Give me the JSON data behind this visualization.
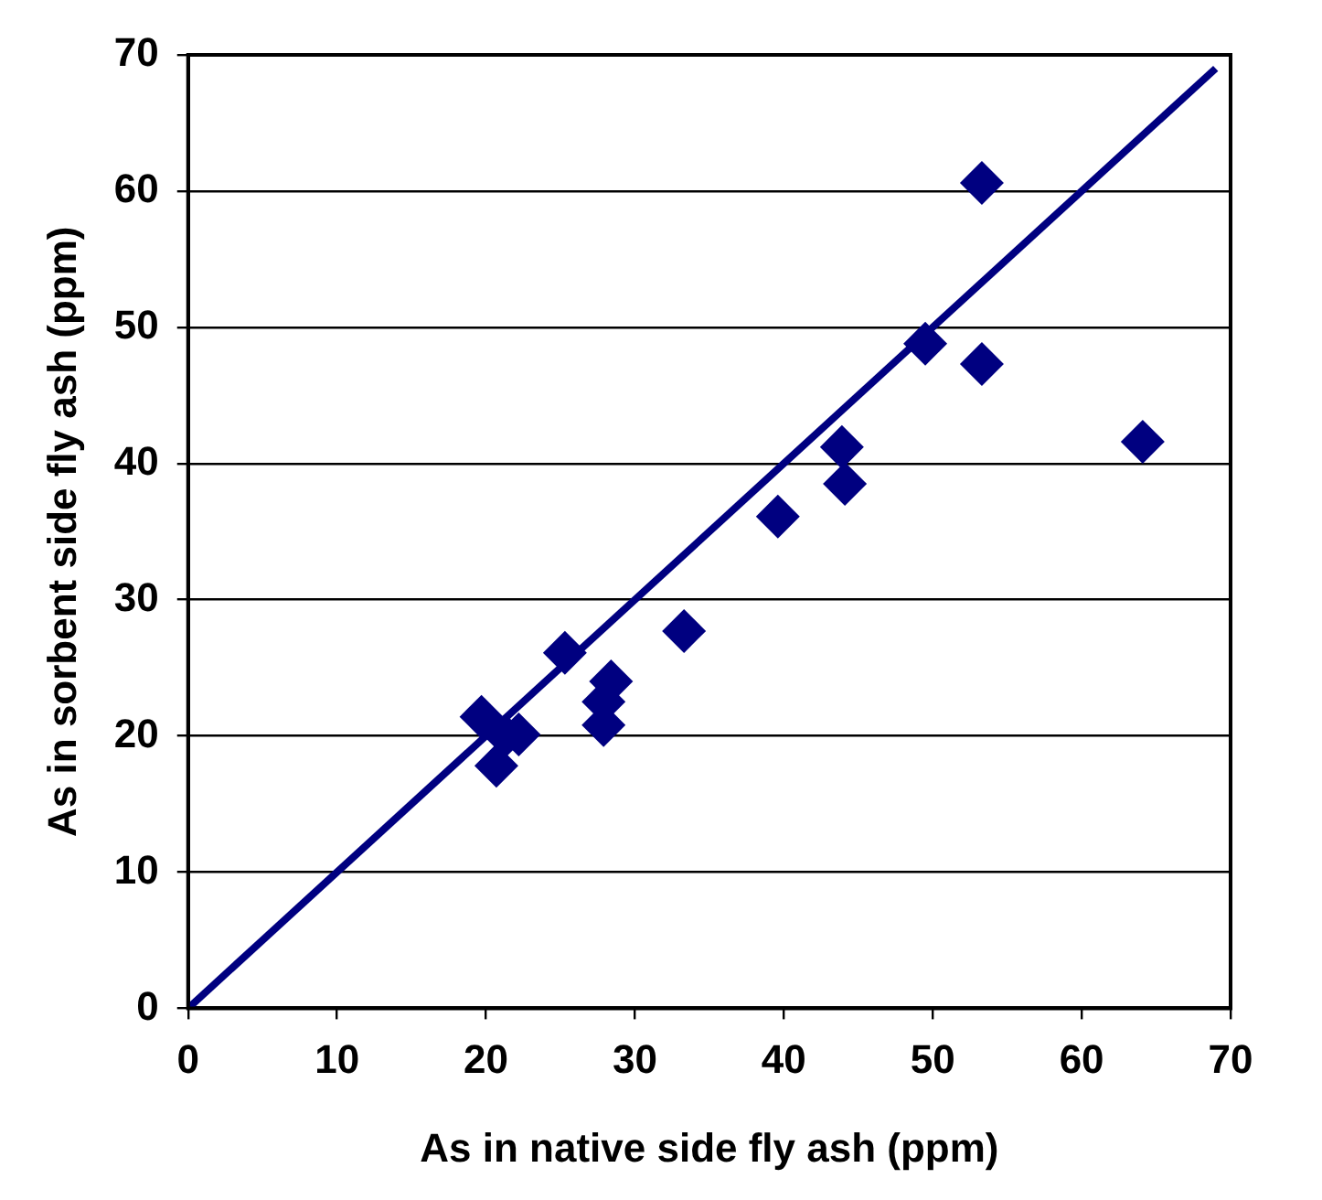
{
  "chart_data": {
    "type": "scatter",
    "xlabel": "As in native side fly ash (ppm)",
    "ylabel": "As in sorbent side fly ash (ppm)",
    "xlim": [
      0,
      70
    ],
    "xticks": [
      0,
      10,
      20,
      30,
      40,
      50,
      60,
      70
    ],
    "ylim": [
      0,
      70
    ],
    "yticks": [
      0,
      10,
      20,
      30,
      40,
      50,
      60,
      70
    ],
    "grid": "y",
    "legend": false,
    "series": [
      {
        "marker": "diamond",
        "color": "#000080",
        "x": [
          53.3,
          49.5,
          53.3,
          64.1,
          43.9,
          44.1,
          39.6,
          33.3,
          25.3,
          28.4,
          27.9,
          27.9,
          19.7,
          20.7,
          22.2,
          21.3
        ],
        "values": [
          60.6,
          48.8,
          47.3,
          41.6,
          41.2,
          38.5,
          36.1,
          27.7,
          26.1,
          24.0,
          22.5,
          20.8,
          21.4,
          17.8,
          20.1,
          20.0
        ]
      },
      {
        "type": "line",
        "marker": "none",
        "color": "#000080",
        "x": [
          0,
          69
        ],
        "values": [
          0,
          69
        ]
      }
    ]
  }
}
